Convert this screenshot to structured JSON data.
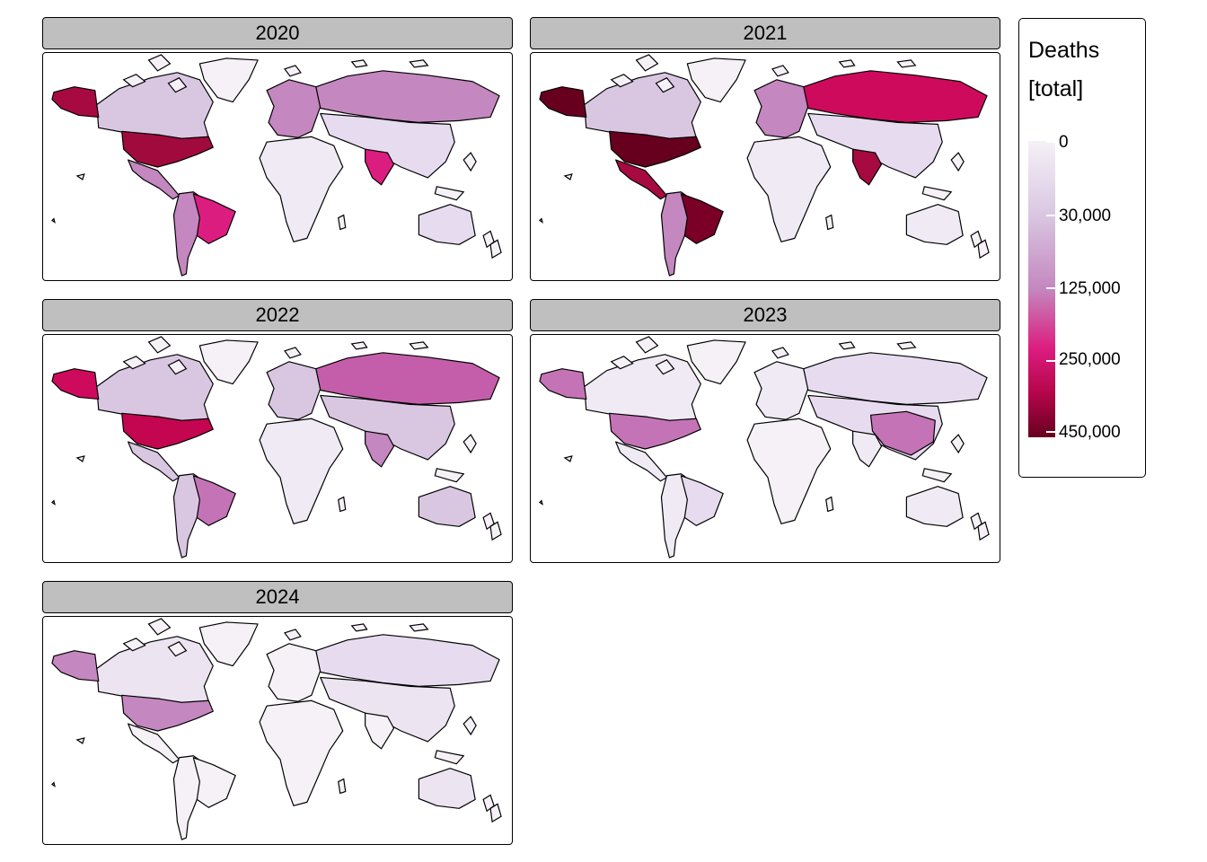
{
  "facets": [
    {
      "label": "2020",
      "fills": {
        "northAmerica": "#d9c7e2",
        "alaska": "#a70a40",
        "usa": "#a10a3d",
        "centralAmerica": "#c487bf",
        "southAmerica": "#c487bf",
        "brazil": "#dc1d80",
        "greenland": "#f5f1f7",
        "europe": "#c487bf",
        "russia": "#c487bf",
        "asia": "#e7dcef",
        "india": "#dc1d80",
        "africa": "#f0eaf4",
        "australia": "#e7dcef"
      }
    },
    {
      "label": "2021",
      "fills": {
        "northAmerica": "#d9c7e2",
        "alaska": "#67001f",
        "usa": "#67001f",
        "centralAmerica": "#a70a40",
        "southAmerica": "#c487bf",
        "brazil": "#7a0028",
        "greenland": "#f5f1f7",
        "europe": "#c487bf",
        "russia": "#ce0a5c",
        "asia": "#e7dcef",
        "india": "#a70a40",
        "africa": "#f0eaf4",
        "australia": "#f0eaf4"
      }
    },
    {
      "label": "2022",
      "fills": {
        "northAmerica": "#d9c7e2",
        "alaska": "#ce0a5c",
        "usa": "#c3064f",
        "centralAmerica": "#d9c7e2",
        "southAmerica": "#d9c7e2",
        "brazil": "#c473b6",
        "greenland": "#f5f1f7",
        "europe": "#d9c7e2",
        "russia": "#c45eaa",
        "asia": "#d9c7e2",
        "india": "#c487bf",
        "africa": "#f0eaf4",
        "australia": "#d9c7e2"
      }
    },
    {
      "label": "2023",
      "fills": {
        "northAmerica": "#f0eaf4",
        "alaska": "#c473b6",
        "usa": "#c473b6",
        "centralAmerica": "#f0eaf4",
        "southAmerica": "#f0eaf4",
        "brazil": "#e7dcef",
        "greenland": "#f5f1f7",
        "europe": "#f0eaf4",
        "russia": "#e7dcef",
        "asia": "#e7dcef",
        "india": "#f0eaf4",
        "africa": "#f5f1f7",
        "australia": "#f0eaf4",
        "china": "#c473b6"
      }
    },
    {
      "label": "2024",
      "fills": {
        "northAmerica": "#ece4f1",
        "alaska": "#c487bf",
        "usa": "#c487bf",
        "centralAmerica": "#f5f1f7",
        "southAmerica": "#f5f1f7",
        "brazil": "#f5f1f7",
        "greenland": "#f5f1f7",
        "europe": "#f5f1f7",
        "russia": "#e7dcef",
        "asia": "#ece4f1",
        "india": "#f5f1f7",
        "africa": "#f5f1f7",
        "australia": "#ece4f1"
      }
    }
  ],
  "legend": {
    "title_line1": "Deaths",
    "title_line2": "[total]",
    "labels": [
      "0",
      "30,000",
      "125,000",
      "250,000",
      "450,000"
    ],
    "values": [
      0,
      30000,
      125000,
      250000,
      450000
    ],
    "colors": [
      "#f5f1f7",
      "#d9c7e2",
      "#c487bf",
      "#dc1d80",
      "#b5064a",
      "#67001f"
    ]
  }
}
